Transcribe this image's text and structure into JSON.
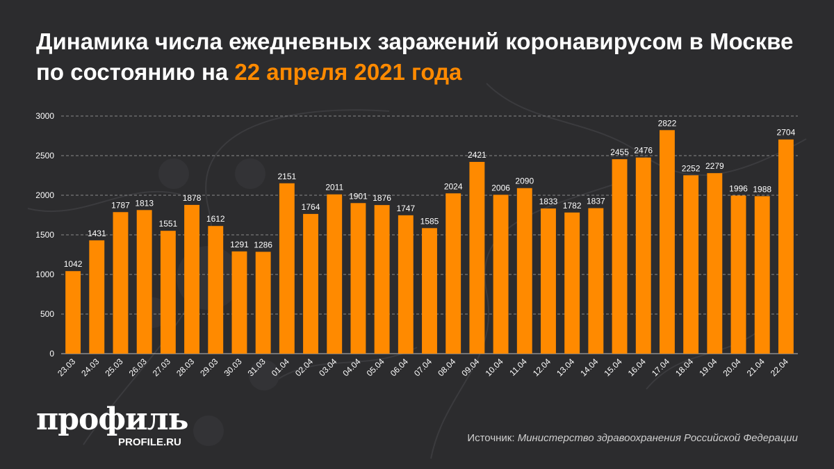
{
  "header": {
    "title_main": "Динамика числа ежедневных заражений коронавирусом в Москве по состоянию на",
    "title_accent": "22 апреля 2021 года"
  },
  "footer": {
    "logo_text": "профиль",
    "logo_url": "PROFILE.RU",
    "source_label": "Источник:",
    "source_value": "Министерство здравоохранения Российской Федерации"
  },
  "colors": {
    "background": "#2c2c2e",
    "bar": "#ff8a00",
    "accent": "#ff8a00",
    "text": "#ffffff",
    "grid": "#8a8a8a"
  },
  "chart_data": {
    "type": "bar",
    "title": "Динамика числа ежедневных заражений коронавирусом в Москве по состоянию на 22 апреля 2021 года",
    "xlabel": "",
    "ylabel": "",
    "ylim": [
      0,
      3000
    ],
    "yticks": [
      0,
      500,
      1000,
      1500,
      2000,
      2500,
      3000
    ],
    "grid": true,
    "data_labels": true,
    "categories": [
      "23.03",
      "24.03",
      "25.03",
      "26.03",
      "27.03",
      "28.03",
      "29.03",
      "30.03",
      "31.03",
      "01.04",
      "02.04",
      "03.04",
      "04.04",
      "05.04",
      "06.04",
      "07.04",
      "08.04",
      "09.04",
      "10.04",
      "11.04",
      "12.04",
      "13.04",
      "14.04",
      "15.04",
      "16.04",
      "17.04",
      "18.04",
      "19.04",
      "20.04",
      "21.04",
      "22.04"
    ],
    "values": [
      1042,
      1431,
      1787,
      1813,
      1551,
      1878,
      1612,
      1291,
      1286,
      2151,
      1764,
      2011,
      1901,
      1876,
      1747,
      1585,
      2024,
      2421,
      2006,
      2090,
      1833,
      1782,
      1837,
      2455,
      2476,
      2822,
      2252,
      2279,
      1996,
      1988,
      2704
    ]
  }
}
